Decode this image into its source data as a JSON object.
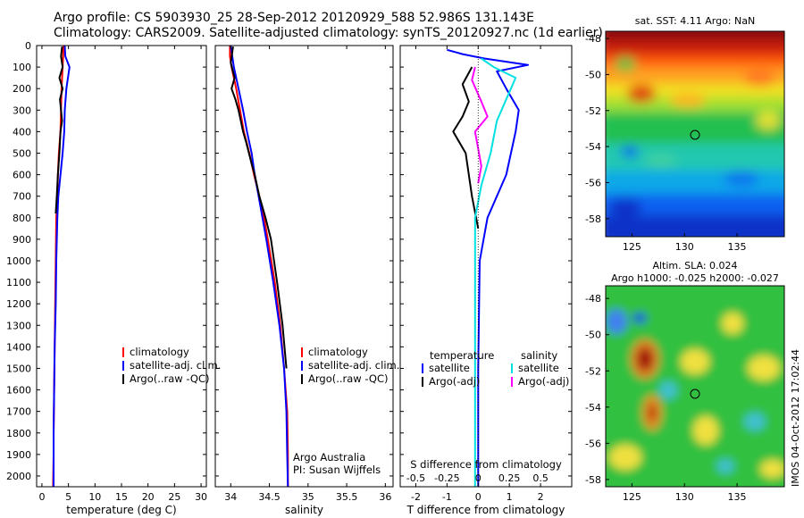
{
  "title_line1": "Argo profile: CS 5903930_25 28-Sep-2012 20120929_588 52.986S 131.143E",
  "title_line2": "Climatology: CARS2009. Satellite-adjusted climatology: synTS_20120927.nc (1d earlier)",
  "colors": {
    "climatology": "#ff0000",
    "satellite": "#0000ff",
    "argo": "#000000",
    "sal_satellite": "#00e0e0",
    "sal_argo": "#ff00ff"
  },
  "chart_data": [
    {
      "type": "line",
      "name": "temperature-panel",
      "xlabel": "temperature (deg C)",
      "xlim": [
        -1,
        31
      ],
      "ylim": [
        0,
        2050
      ],
      "y_inverted": true,
      "xticks": [
        0,
        5,
        10,
        15,
        20,
        25,
        30
      ],
      "yticks": [
        0,
        100,
        200,
        300,
        400,
        500,
        600,
        700,
        800,
        900,
        1000,
        1100,
        1200,
        1300,
        1400,
        1500,
        1600,
        1700,
        1800,
        1900,
        2000
      ],
      "legend": {
        "position": "lower-right",
        "entries": [
          "climatology",
          "satellite-adj. clim.",
          "Argo(..raw -QC)"
        ]
      },
      "series": [
        {
          "name": "climatology",
          "color": "#ff0000",
          "x": [
            4.1,
            4.0,
            3.9,
            3.7,
            3.6,
            3.5,
            3.2,
            3.0,
            2.9,
            2.7,
            2.6,
            2.5,
            2.4,
            2.3,
            2.2,
            2.2,
            2.1
          ],
          "y": [
            0,
            50,
            100,
            200,
            300,
            400,
            500,
            600,
            700,
            800,
            1000,
            1200,
            1400,
            1600,
            1800,
            1900,
            2050
          ]
        },
        {
          "name": "satellite-adj. clim.",
          "color": "#0000ff",
          "x": [
            4.3,
            4.4,
            5.2,
            4.6,
            4.3,
            4.2,
            3.9,
            3.5,
            3.1,
            2.9,
            2.7,
            2.6,
            2.4,
            2.3,
            2.2,
            2.2,
            2.2
          ],
          "y": [
            0,
            50,
            100,
            200,
            300,
            400,
            500,
            600,
            700,
            800,
            1000,
            1200,
            1400,
            1600,
            1800,
            1900,
            2050
          ]
        },
        {
          "name": "Argo(..raw -QC)",
          "color": "#000000",
          "x": [
            3.8,
            3.6,
            3.9,
            3.3,
            3.9,
            3.4,
            3.6,
            3.8,
            3.5,
            3.3,
            3.0,
            2.8,
            2.6
          ],
          "y": [
            5,
            50,
            100,
            150,
            200,
            250,
            300,
            350,
            400,
            500,
            600,
            700,
            780
          ]
        }
      ]
    },
    {
      "type": "line",
      "name": "salinity-panel",
      "xlabel": "salinity",
      "xlim": [
        33.8,
        36.1
      ],
      "ylim": [
        0,
        2050
      ],
      "y_inverted": true,
      "xticks": [
        34,
        34.5,
        35,
        35.5,
        36
      ],
      "legend": {
        "position": "lower-right",
        "entries": [
          "climatology",
          "satellite-adj. clim.",
          "Argo(..raw -QC)"
        ]
      },
      "annotation_lines": [
        "Argo Australia",
        "PI: Susan Wijffels"
      ],
      "series": [
        {
          "name": "climatology",
          "color": "#ff0000",
          "x": [
            33.99,
            33.99,
            34.01,
            34.07,
            34.12,
            34.17,
            34.24,
            34.3,
            34.37,
            34.43,
            34.48,
            34.57,
            34.64,
            34.69,
            34.73,
            34.74,
            34.74
          ],
          "y": [
            0,
            50,
            100,
            200,
            300,
            400,
            500,
            600,
            700,
            800,
            900,
            1100,
            1300,
            1500,
            1700,
            1900,
            2050
          ]
        },
        {
          "name": "satellite-adj. clim.",
          "color": "#0000ff",
          "x": [
            34.0,
            34.02,
            34.04,
            34.1,
            34.16,
            34.21,
            34.27,
            34.31,
            34.36,
            34.41,
            34.46,
            34.55,
            34.63,
            34.69,
            34.72,
            34.73,
            34.74
          ],
          "y": [
            0,
            50,
            100,
            200,
            300,
            400,
            500,
            600,
            700,
            800,
            900,
            1100,
            1300,
            1500,
            1700,
            1900,
            2050
          ]
        },
        {
          "name": "Argo(..raw -QC)",
          "color": "#000000",
          "x": [
            34.03,
            34.0,
            34.05,
            34.01,
            34.06,
            34.1,
            34.16,
            34.2,
            34.27,
            34.31,
            34.37,
            34.45,
            34.52,
            34.6,
            34.67,
            34.72
          ],
          "y": [
            5,
            80,
            150,
            200,
            250,
            300,
            400,
            450,
            550,
            600,
            700,
            800,
            900,
            1100,
            1300,
            1500
          ]
        }
      ]
    },
    {
      "type": "line",
      "name": "difference-panel",
      "xlabel": "T difference from climatology",
      "top_axis_label": "S difference from climatology",
      "xlim": [
        -2.5,
        3.0
      ],
      "ylim": [
        0,
        2050
      ],
      "y_inverted": true,
      "xticks": [
        -2,
        -1,
        0,
        1,
        2
      ],
      "s_ticks": [
        "-0.5",
        "-0.25",
        "0",
        "0.25",
        "0.5"
      ],
      "s_tick_x_positions_T_units": [
        -2,
        -1,
        0,
        1,
        2
      ],
      "legend": {
        "position": "lower",
        "entries": [
          "temperature",
          "satellite",
          "Argo(-adj)",
          "salinity",
          "satellite",
          "Argo(-adj)"
        ]
      },
      "series": [
        {
          "name": "satellite",
          "quantity": "temperature",
          "color": "#0000ff",
          "x": [
            -1.0,
            -0.5,
            0.2,
            1.6,
            0.6,
            0.9,
            1.3,
            1.2,
            0.9,
            0.3,
            0.05,
            0.0,
            0.0
          ],
          "y": [
            20,
            40,
            60,
            90,
            120,
            200,
            300,
            400,
            600,
            800,
            1000,
            1500,
            2050
          ]
        },
        {
          "name": "Argo(-adj)",
          "quantity": "temperature",
          "color": "#000000",
          "x": [
            -0.2,
            -0.5,
            -0.3,
            -0.5,
            -0.8,
            -0.4,
            -0.3,
            -0.2,
            0.0
          ],
          "y": [
            100,
            180,
            260,
            330,
            400,
            500,
            600,
            700,
            850
          ]
        },
        {
          "name": "satellite",
          "quantity": "salinity",
          "color": "#00e0e0",
          "x": [
            0.1,
            0.5,
            1.2,
            0.9,
            0.6,
            0.4,
            0.1,
            -0.1,
            -0.1,
            -0.1,
            -0.1
          ],
          "y": [
            60,
            100,
            150,
            250,
            350,
            500,
            650,
            800,
            1200,
            1600,
            2050
          ]
        },
        {
          "name": "Argo(-adj)",
          "quantity": "salinity",
          "color": "#ff00ff",
          "x": [
            -0.1,
            -0.2,
            0.1,
            0.3,
            -0.1,
            0.1,
            0.0
          ],
          "y": [
            100,
            160,
            260,
            330,
            400,
            560,
            640
          ]
        }
      ]
    },
    {
      "type": "heatmap",
      "name": "sst-map",
      "title": "sat. SST: 4.11  Argo: NaN",
      "xticks": [
        125,
        130,
        135
      ],
      "yticks": [
        -48,
        -50,
        -52,
        -54,
        -56,
        -58
      ],
      "marker": {
        "lon": 131.143,
        "lat": -52.986
      }
    },
    {
      "type": "heatmap",
      "name": "sla-map",
      "title_line1": "Altim. SLA: 0.024",
      "title_line2": "Argo h1000: -0.025 h2000: -0.027",
      "xticks": [
        125,
        130,
        135
      ],
      "yticks": [
        -48,
        -50,
        -52,
        -54,
        -56,
        -58
      ],
      "marker": {
        "lon": 131.143,
        "lat": -52.986
      }
    }
  ],
  "footer_stamp": "IMOS 04-Oct-2012 17:02:44"
}
